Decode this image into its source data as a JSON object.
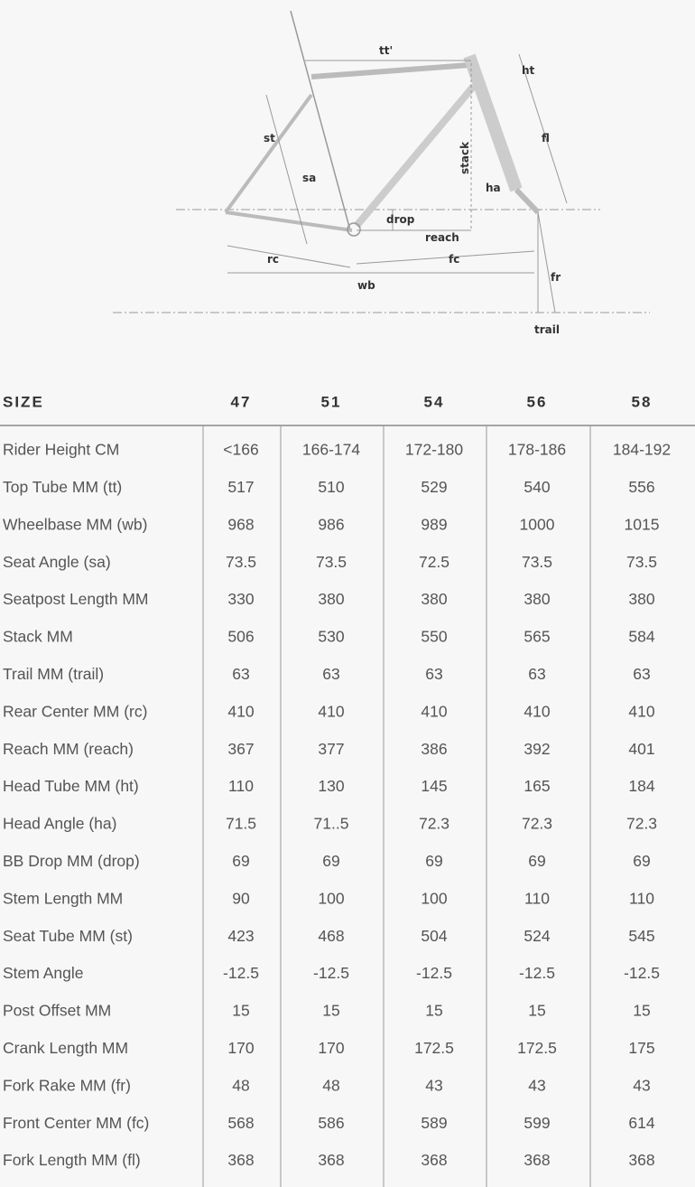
{
  "diagram": {
    "labels": [
      "tt'",
      "ht",
      "st",
      "fl",
      "stack",
      "sa",
      "ha",
      "drop",
      "reach",
      "rc",
      "fc",
      "wb",
      "fr",
      "trail"
    ]
  },
  "table": {
    "header": [
      "SIZE",
      "47",
      "51",
      "54",
      "56",
      "58"
    ],
    "rows": [
      [
        "Rider Height CM",
        "<166",
        "166-174",
        "172-180",
        "178-186",
        "184-192"
      ],
      [
        "Top Tube MM (tt)",
        "517",
        "510",
        "529",
        "540",
        "556"
      ],
      [
        "Wheelbase MM (wb)",
        "968",
        "986",
        "989",
        "1000",
        "1015"
      ],
      [
        "Seat Angle (sa)",
        "73.5",
        "73.5",
        "72.5",
        "73.5",
        "73.5"
      ],
      [
        "Seatpost Length MM",
        "330",
        "380",
        "380",
        "380",
        "380"
      ],
      [
        "Stack MM",
        "506",
        "530",
        "550",
        "565",
        "584"
      ],
      [
        "Trail MM (trail)",
        "63",
        "63",
        "63",
        "63",
        "63"
      ],
      [
        "Rear Center MM (rc)",
        "410",
        "410",
        "410",
        "410",
        "410"
      ],
      [
        "Reach MM (reach)",
        "367",
        "377",
        "386",
        "392",
        "401"
      ],
      [
        "Head Tube MM (ht)",
        "110",
        "130",
        "145",
        "165",
        "184"
      ],
      [
        "Head Angle (ha)",
        "71.5",
        "71..5",
        "72.3",
        "72.3",
        "72.3"
      ],
      [
        "BB Drop MM (drop)",
        "69",
        "69",
        "69",
        "69",
        "69"
      ],
      [
        "Stem Length MM",
        "90",
        "100",
        "100",
        "110",
        "110"
      ],
      [
        "Seat Tube MM (st)",
        "423",
        "468",
        "504",
        "524",
        "545"
      ],
      [
        "Stem Angle",
        "-12.5",
        "-12.5",
        "-12.5",
        "-12.5",
        "-12.5"
      ],
      [
        "Post Offset MM",
        "15",
        "15",
        "15",
        "15",
        "15"
      ],
      [
        "Crank Length MM",
        "170",
        "170",
        "172.5",
        "172.5",
        "175"
      ],
      [
        "Fork Rake MM (fr)",
        "48",
        "48",
        "43",
        "43",
        "43"
      ],
      [
        "Front Center MM (fc)",
        "568",
        "586",
        "589",
        "599",
        "614"
      ],
      [
        "Fork Length MM (fl)",
        "368",
        "368",
        "368",
        "368",
        "368"
      ]
    ]
  }
}
